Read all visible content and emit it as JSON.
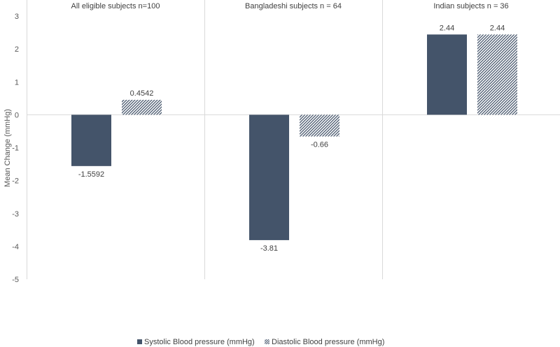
{
  "chart_data": {
    "type": "bar",
    "ylabel": "Mean Change (mmHg)",
    "ylim": [
      -5,
      3
    ],
    "yticks": [
      3,
      2,
      1,
      0,
      -1,
      -2,
      -3,
      -4,
      -5
    ],
    "grid": "vertical panel dividers",
    "legend_position": "bottom-center",
    "panels": [
      {
        "title": "All eligible subjects n=100",
        "values": [
          -1.5592,
          0.4542
        ],
        "labels": [
          "-1.5592",
          "0.4542"
        ]
      },
      {
        "title": "Bangladeshi subjects n = 64",
        "values": [
          -3.81,
          -0.66
        ],
        "labels": [
          "-3.81",
          "-0.66"
        ]
      },
      {
        "title": "Indian subjects n = 36",
        "values": [
          2.44,
          2.44
        ],
        "labels": [
          "2.44",
          "2.44"
        ]
      }
    ],
    "series": [
      {
        "name": "Systolic Blood pressure (mmHg)",
        "pattern": "solid",
        "color": "#44546a"
      },
      {
        "name": "Diastolic Blood pressure (mmHg)",
        "pattern": "hatched",
        "color": "#44546a"
      }
    ]
  }
}
